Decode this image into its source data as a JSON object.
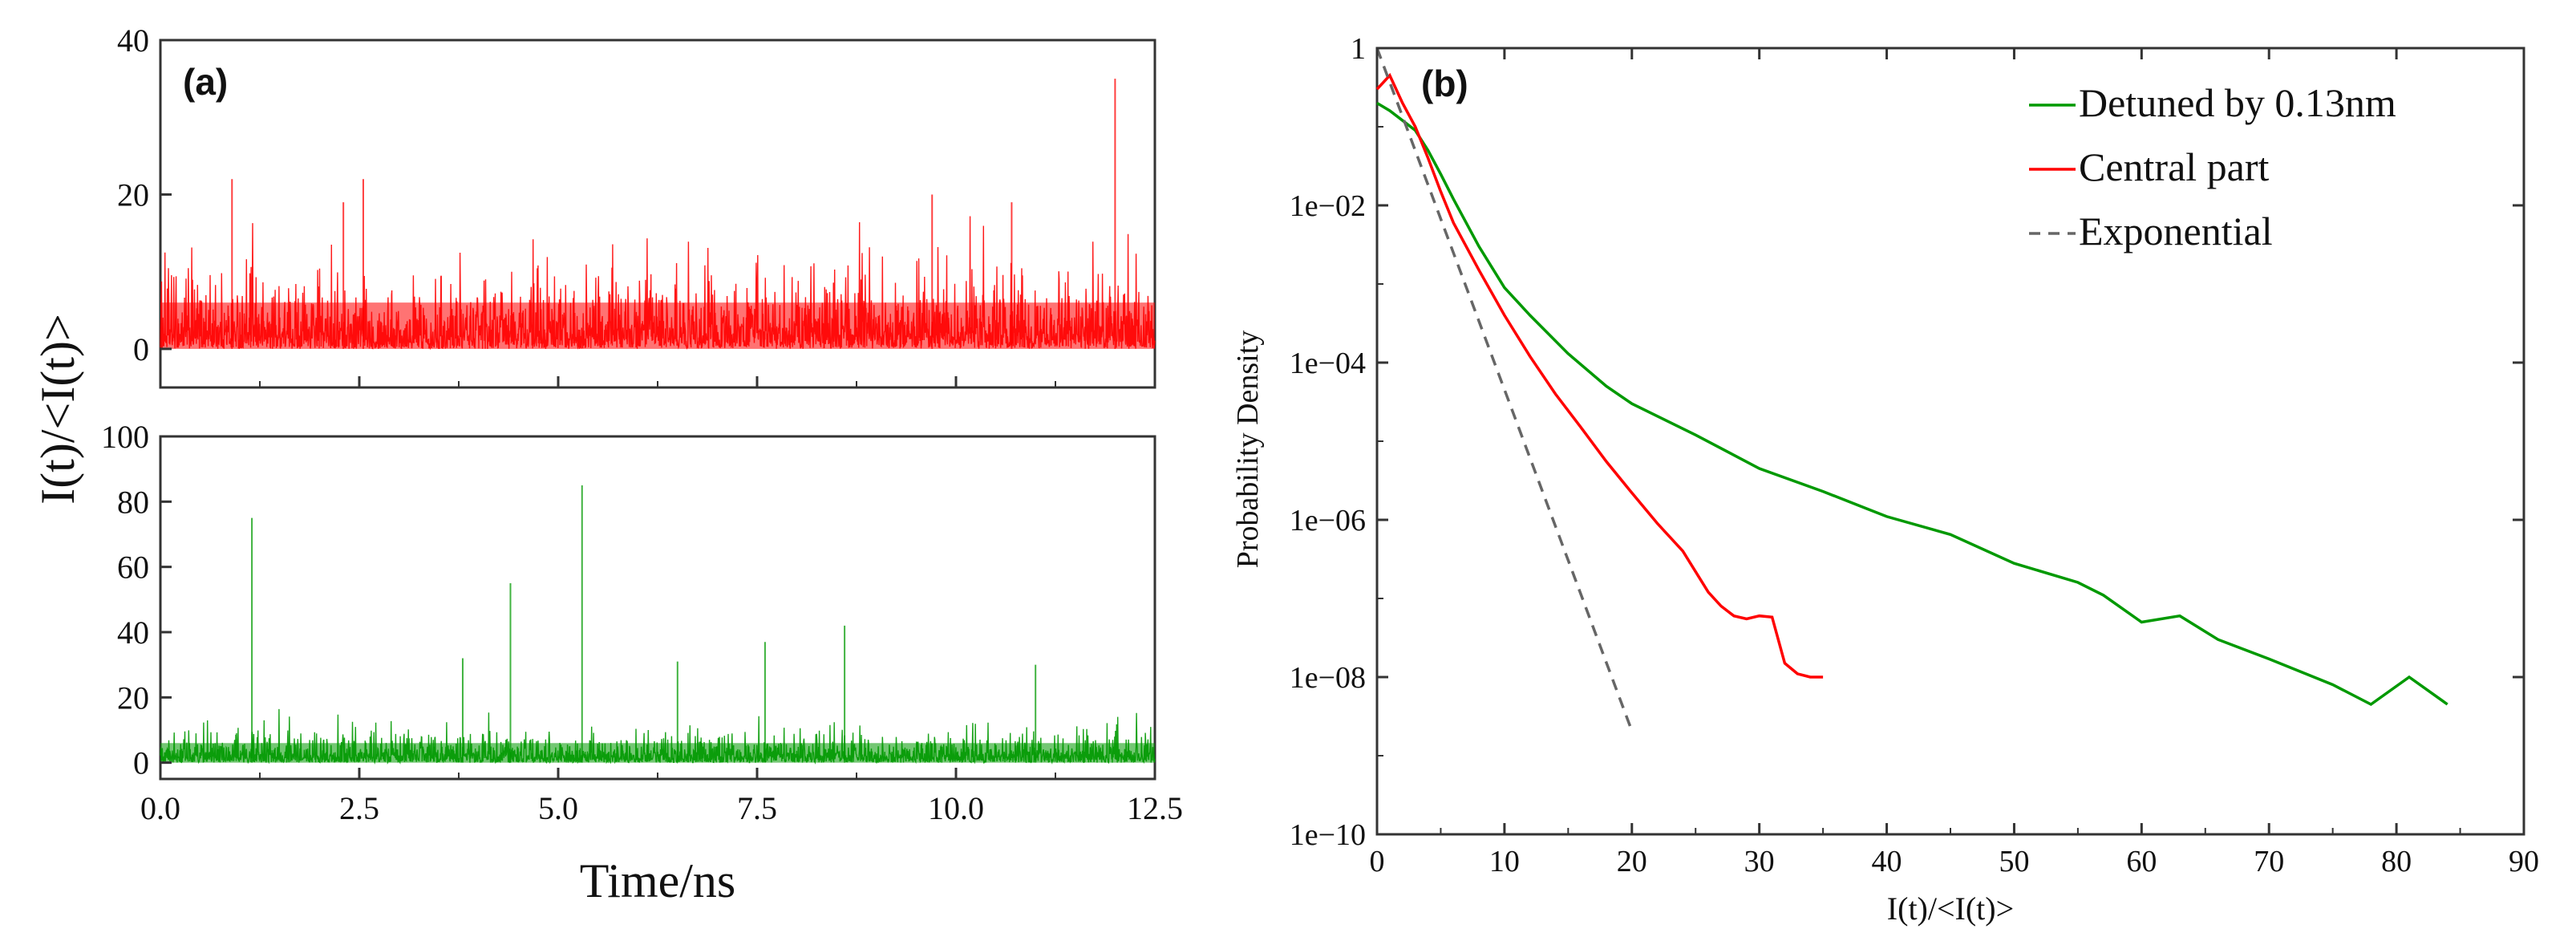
{
  "chart_data": [
    {
      "id": "a",
      "type": "line",
      "panel_label": "(a)",
      "title": "",
      "shared_xlabel": "Time/ns",
      "shared_ylabel": "I(t)/<I(t)>",
      "x_ticks": [
        "0.0",
        "2.5",
        "5.0",
        "7.5",
        "10.0",
        "12.5"
      ],
      "x_tick_values": [
        0,
        2.5,
        5.0,
        7.5,
        10.0,
        12.5
      ],
      "xlim": [
        0,
        12.5
      ],
      "subplots": [
        {
          "id": "a-top",
          "series_name": "Central part",
          "color": "#ff0000",
          "ylim": [
            -5,
            40
          ],
          "y_ticks": [
            "0",
            "20",
            "40"
          ],
          "y_tick_values": [
            0,
            20,
            40
          ],
          "noise_baseline_mean": 2.5,
          "noise_max_typical": 12,
          "spikes": [
            {
              "x": 0.9,
              "y": 22
            },
            {
              "x": 2.55,
              "y": 22
            },
            {
              "x": 2.3,
              "y": 19
            },
            {
              "x": 9.7,
              "y": 20
            },
            {
              "x": 10.7,
              "y": 19
            },
            {
              "x": 12.0,
              "y": 35
            }
          ]
        },
        {
          "id": "a-bottom",
          "series_name": "Detuned by 0.13nm",
          "color": "#009900",
          "ylim": [
            -5,
            100
          ],
          "y_ticks": [
            "0",
            "20",
            "40",
            "60",
            "80",
            "100"
          ],
          "y_tick_values": [
            0,
            20,
            40,
            60,
            80,
            100
          ],
          "noise_baseline_mean": 2.5,
          "noise_max_typical": 12,
          "spikes": [
            {
              "x": 1.15,
              "y": 75
            },
            {
              "x": 5.3,
              "y": 85
            },
            {
              "x": 4.4,
              "y": 55
            },
            {
              "x": 8.6,
              "y": 42
            },
            {
              "x": 3.8,
              "y": 32
            },
            {
              "x": 7.6,
              "y": 37
            },
            {
              "x": 6.5,
              "y": 31
            },
            {
              "x": 11.0,
              "y": 30
            }
          ]
        }
      ]
    },
    {
      "id": "b",
      "type": "line",
      "panel_label": "(b)",
      "title": "",
      "xlabel": "I(t)/<I(t)>",
      "ylabel": "Probability Density",
      "xlim": [
        0,
        90
      ],
      "x_ticks": [
        "0",
        "10",
        "20",
        "30",
        "40",
        "50",
        "60",
        "70",
        "80",
        "90"
      ],
      "x_tick_values": [
        0,
        10,
        20,
        30,
        40,
        50,
        60,
        70,
        80,
        90
      ],
      "yscale": "log",
      "ylim_exponent": [
        -10,
        0
      ],
      "y_ticks": [
        "1",
        "1e−02",
        "1e−04",
        "1e−06",
        "1e−08",
        "1e−10"
      ],
      "y_tick_exponents": [
        0,
        -2,
        -4,
        -6,
        -8,
        -10
      ],
      "legend_position": "top-right",
      "series": [
        {
          "name": "Detuned by 0.13nm",
          "color": "#009900",
          "dash": "solid",
          "x": [
            0,
            1,
            2,
            3,
            4,
            5,
            6,
            8,
            10,
            12,
            15,
            18,
            20,
            25,
            30,
            35,
            40,
            45,
            50,
            55,
            57,
            60,
            63,
            66,
            70,
            75,
            78,
            81,
            84
          ],
          "y": [
            0.2,
            0.16,
            0.12,
            0.09,
            0.05,
            0.025,
            0.012,
            0.003,
            0.0009,
            0.0004,
            0.00013,
            5e-05,
            3e-05,
            1.2e-05,
            4.5e-06,
            2.3e-06,
            1.1e-06,
            6.5e-07,
            2.8e-07,
            1.6e-07,
            1.1e-07,
            5e-08,
            6e-08,
            3e-08,
            1.7e-08,
            8e-09,
            4.5e-09,
            1e-08,
            4.5e-09
          ]
        },
        {
          "name": "Central part",
          "color": "#ff0000",
          "dash": "solid",
          "x": [
            0,
            1,
            2,
            3,
            4,
            5,
            6,
            8,
            10,
            12,
            14,
            16,
            18,
            20,
            22,
            24,
            26,
            27,
            28,
            29,
            30,
            31,
            32,
            33,
            34,
            35
          ],
          "y": [
            0.3,
            0.45,
            0.2,
            0.1,
            0.04,
            0.015,
            0.006,
            0.0015,
            0.0004,
            0.00012,
            4e-05,
            1.5e-05,
            5.5e-06,
            2.2e-06,
            9e-07,
            4e-07,
            1.2e-07,
            8e-08,
            6e-08,
            5.5e-08,
            6e-08,
            5.8e-08,
            1.5e-08,
            1.1e-08,
            1e-08,
            1e-08
          ]
        },
        {
          "name": "Exponential",
          "color": "#666666",
          "dash": "dashed",
          "x": [
            0,
            20
          ],
          "y": [
            1,
            2.0612e-09
          ]
        }
      ]
    }
  ]
}
